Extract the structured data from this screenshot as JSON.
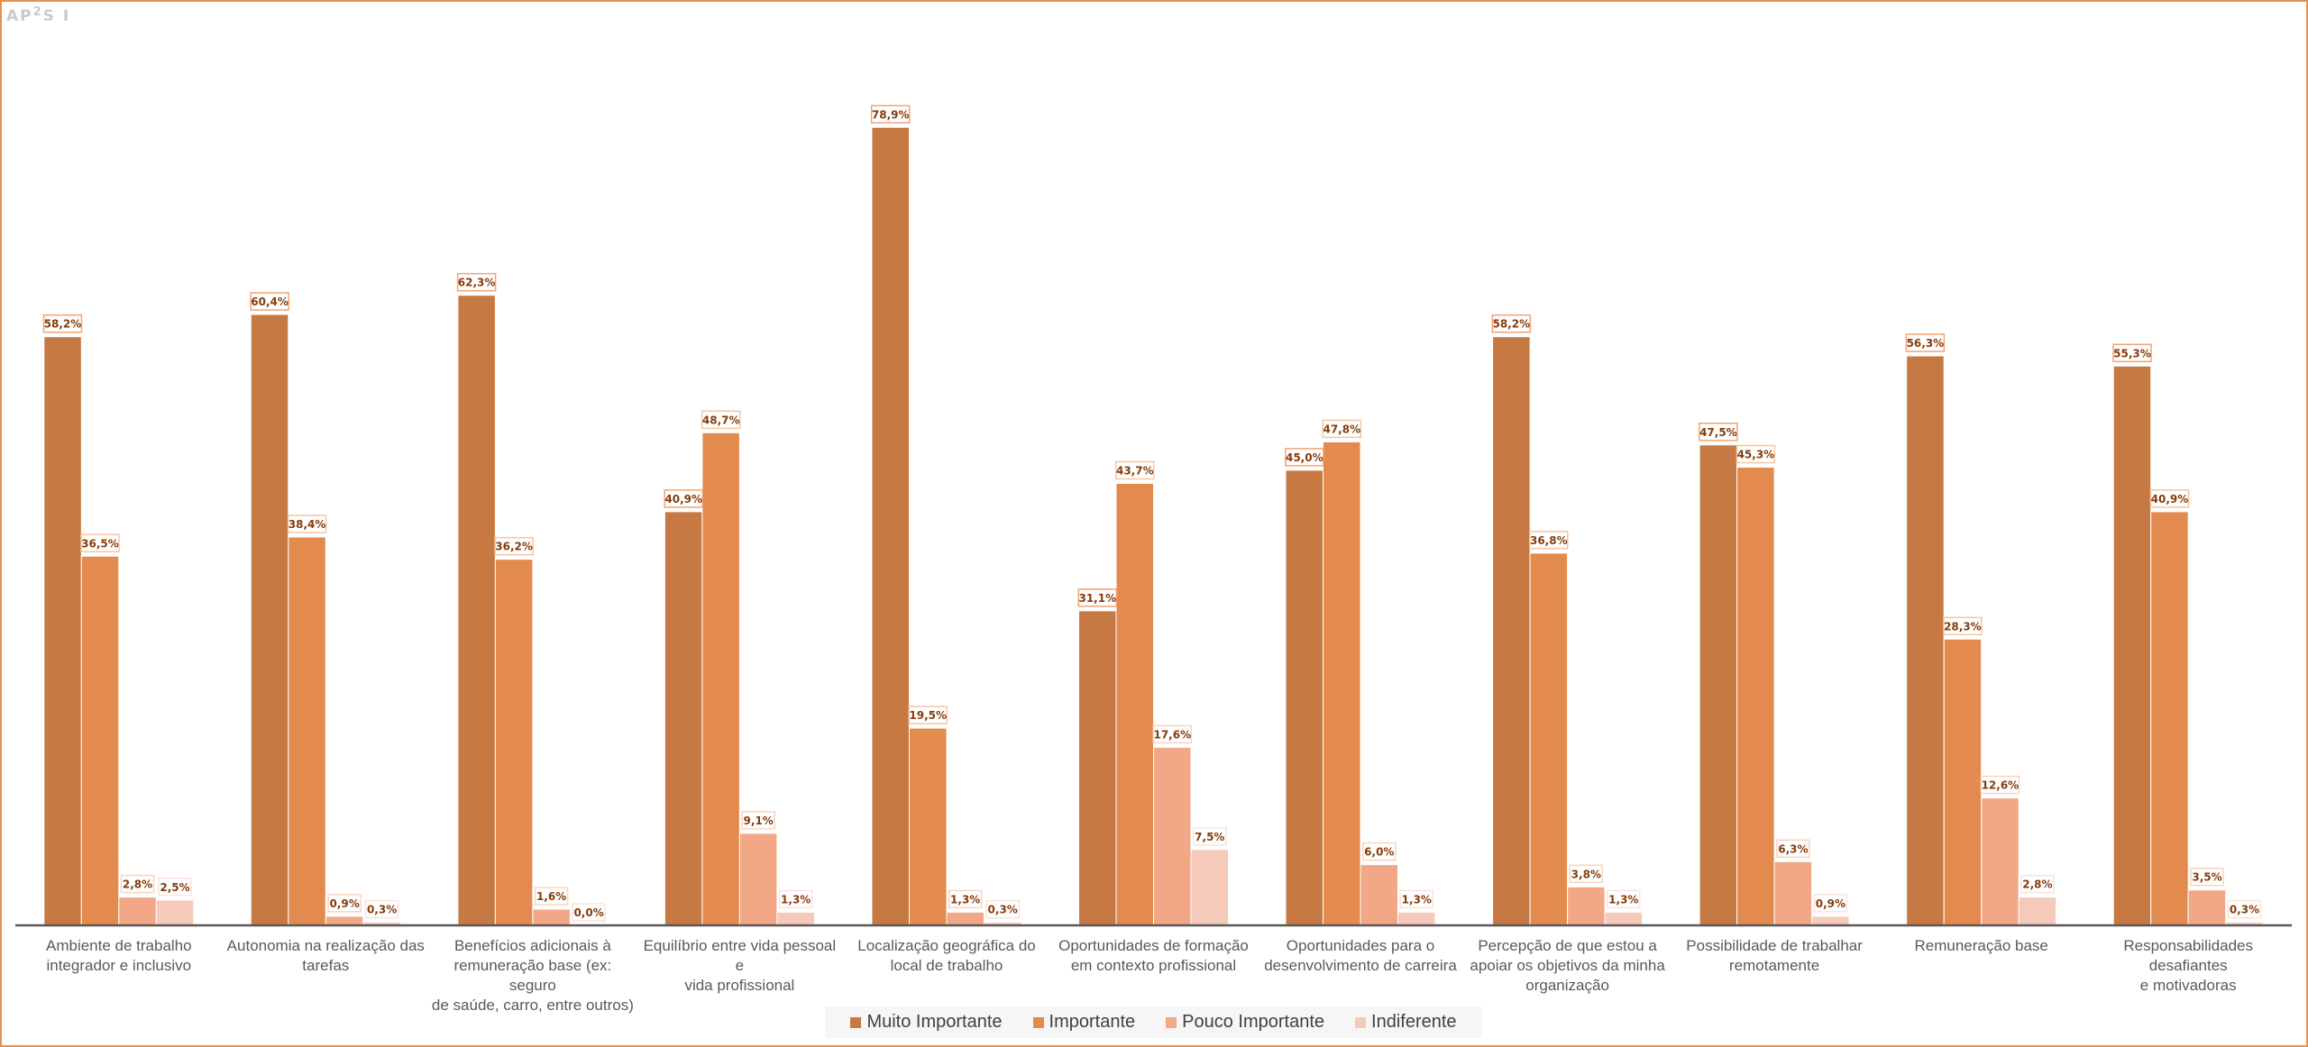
{
  "logo": {
    "text": "AP",
    "sup": "2",
    "rest": "S I"
  },
  "chart_data": {
    "type": "bar",
    "title": "",
    "xlabel": "",
    "ylabel": "",
    "ylim": [
      0,
      80
    ],
    "grid": false,
    "legend_position": "bottom",
    "value_format": "percent-comma-1-decimal",
    "categories": [
      "Ambiente de trabalho integrador e inclusivo",
      "Autonomia na realização das tarefas",
      "Benefícios adicionais à remuneração base (ex: seguro de saúde, carro, entre outros)",
      "Equilíbrio entre vida pessoal e vida profissional",
      "Localização geográfica do local de trabalho",
      "Oportunidades de formação em contexto profissional",
      "Oportunidades para o desenvolvimento de carreira",
      "Percepção de que estou a apoiar os objetivos da minha organização",
      "Possibilidade de trabalhar remotamente",
      "Remuneração base",
      "Responsabilidades desafiantes e motivadoras"
    ],
    "category_label_lines": [
      [
        "Ambiente de trabalho",
        "integrador e inclusivo"
      ],
      [
        "Autonomia na realização das",
        "tarefas"
      ],
      [
        "Benefícios adicionais à",
        "remuneração base (ex: seguro",
        "de saúde, carro, entre outros)"
      ],
      [
        "Equilíbrio entre vida pessoal e",
        "vida profissional"
      ],
      [
        "Localização geográfica do",
        "local de trabalho"
      ],
      [
        "Oportunidades de formação",
        "em contexto profissional"
      ],
      [
        "Oportunidades para o",
        "desenvolvimento de carreira"
      ],
      [
        "Percepção de que estou a",
        "apoiar os objetivos da minha",
        "organização"
      ],
      [
        "Possibilidade de trabalhar",
        "remotamente"
      ],
      [
        "Remuneração base"
      ],
      [
        "Responsabilidades desafiantes",
        "e motivadoras"
      ]
    ],
    "series": [
      {
        "name": "Muito Importante",
        "color": "#C55A11",
        "fill": "#C67943",
        "label_border": "#F4A36E",
        "values": [
          58.2,
          60.4,
          62.3,
          40.9,
          78.9,
          31.1,
          45.0,
          58.2,
          47.5,
          56.3,
          55.3
        ],
        "labels": [
          "58,2%",
          "60,4%",
          "62,3%",
          "40,9%",
          "78,9%",
          "31,1%",
          "45,0%",
          "58,2%",
          "47,5%",
          "56,3%",
          "55,3%"
        ]
      },
      {
        "name": "Importante",
        "color": "#E38A4E",
        "fill": "#E38A4E",
        "label_border": "#F8C4A0",
        "values": [
          36.5,
          38.4,
          36.2,
          48.7,
          19.5,
          43.7,
          47.8,
          36.8,
          45.3,
          28.3,
          40.9
        ],
        "labels": [
          "36,5%",
          "38,4%",
          "36,2%",
          "48,7%",
          "19,5%",
          "43,7%",
          "47,8%",
          "36,8%",
          "45,3%",
          "28,3%",
          "40,9%"
        ]
      },
      {
        "name": "Pouco Importante",
        "color": "#F2A886",
        "fill": "#F2A886",
        "label_border": "#FAD3BE",
        "values": [
          2.8,
          0.9,
          1.6,
          9.1,
          1.3,
          17.6,
          6.0,
          3.8,
          6.3,
          12.6,
          3.5
        ],
        "labels": [
          "2,8%",
          "0,9%",
          "1,6%",
          "9,1%",
          "1,3%",
          "17,6%",
          "6,0%",
          "3,8%",
          "6,3%",
          "12,6%",
          "3,5%"
        ]
      },
      {
        "name": "Indiferente",
        "color": "#F5CABA",
        "fill": "#F5CABA",
        "label_border": "#FBE3D8",
        "values": [
          2.5,
          0.3,
          0.0,
          1.3,
          0.3,
          7.5,
          1.3,
          1.3,
          0.9,
          2.8,
          0.3
        ],
        "labels": [
          "2,5%",
          "0,3%",
          "0,0%",
          "1,3%",
          "0,3%",
          "7,5%",
          "1,3%",
          "1,3%",
          "0,9%",
          "2,8%",
          "0,3%"
        ]
      }
    ]
  },
  "colors": {
    "frame_border": "#E8914F",
    "axis_line": "#595959",
    "data_label_text": "#843C0C",
    "category_text": "#595959",
    "legend_text": "#404040",
    "legend_background": "#F6F6F6",
    "logo": "#C9C9C9"
  }
}
